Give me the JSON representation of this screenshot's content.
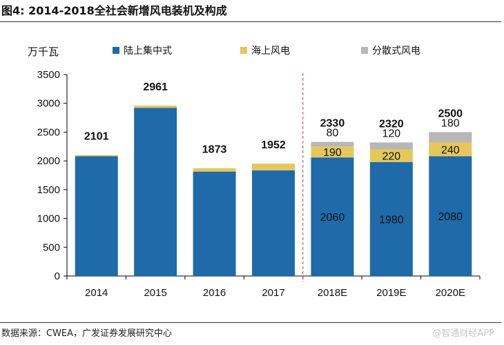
{
  "figure": {
    "title": "图4: 2014-2018全社会新增风电装机及构成",
    "source": "数据来源：CWEA，广发证券发展研究中心",
    "watermark": "@智通财经APP"
  },
  "colors": {
    "onshore": "#1f6aa8",
    "offshore": "#e6c75c",
    "distributed": "#b7b7b7",
    "divider": "#d9534f"
  },
  "chart_data": {
    "type": "bar",
    "stacked": true,
    "title": "",
    "ylabel": "万千瓦",
    "xlabel": "",
    "ylim": [
      0,
      3500
    ],
    "yticks": [
      0,
      500,
      1000,
      1500,
      2000,
      2500,
      3000,
      3500
    ],
    "grid": false,
    "legend_position": "top",
    "categories": [
      "2014",
      "2015",
      "2016",
      "2017",
      "2018E",
      "2019E",
      "2020E"
    ],
    "series": [
      {
        "name": "陆上集中式",
        "key": "onshore",
        "values": [
          2081,
          2922,
          1814,
          1835,
          2060,
          1980,
          2080
        ]
      },
      {
        "name": "海上风电",
        "key": "offshore",
        "values": [
          20,
          39,
          59,
          117,
          190,
          220,
          240
        ]
      },
      {
        "name": "分散式风电",
        "key": "distributed",
        "values": [
          0,
          0,
          0,
          0,
          80,
          120,
          180
        ]
      }
    ],
    "totals": [
      2101,
      2961,
      1873,
      1952,
      2330,
      2320,
      2500
    ],
    "segment_labels": [
      {
        "category": "2018E",
        "onshore": "2060",
        "offshore": "190",
        "distributed": "80"
      },
      {
        "category": "2019E",
        "onshore": "1980",
        "offshore": "220",
        "distributed": "120"
      },
      {
        "category": "2020E",
        "onshore": "2080",
        "offshore": "240",
        "distributed": "180"
      }
    ],
    "divider_after_category": "2017"
  }
}
